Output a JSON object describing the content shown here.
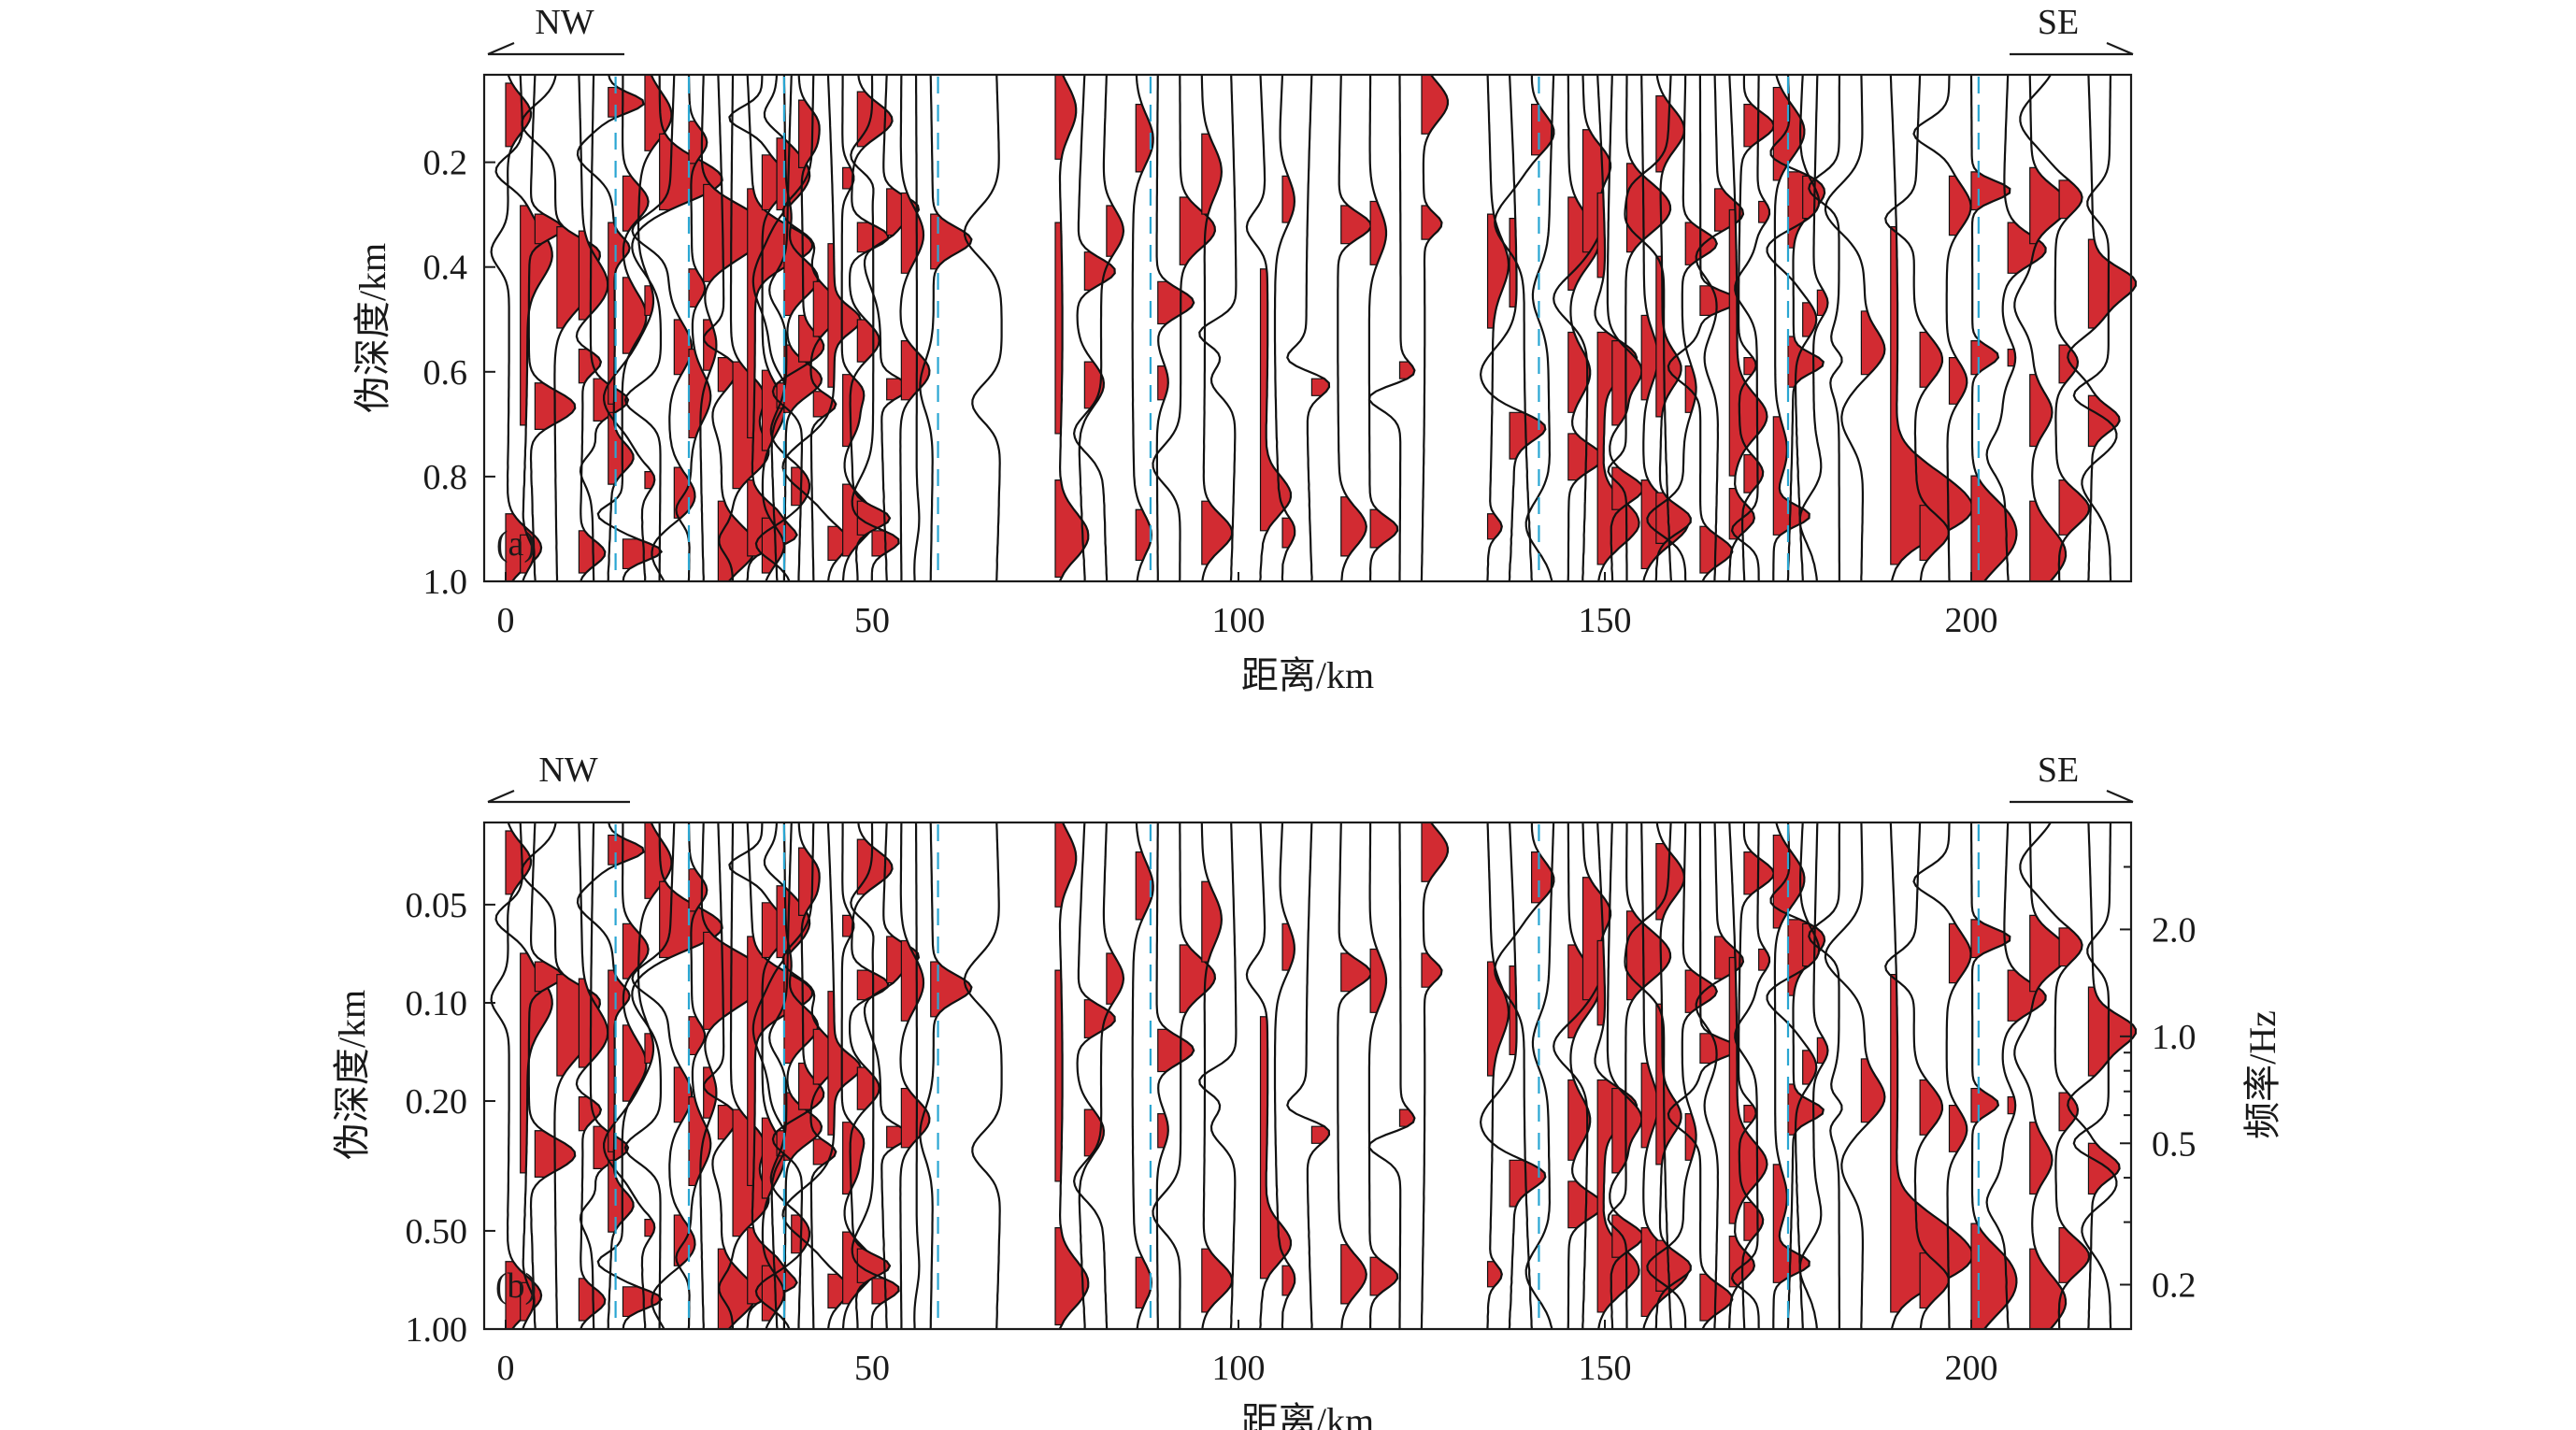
{
  "chart_data": [
    {
      "type": "other",
      "panel_label": "(a)",
      "xlabel": "距离/km",
      "ylabel": "伪深度/km",
      "x_ticks": [
        0,
        50,
        100,
        150,
        200
      ],
      "y_ticks": [
        0.2,
        0.4,
        0.6,
        0.8,
        1.0
      ],
      "y_scale": "linear",
      "left_direction": "NW",
      "right_direction": "SE",
      "station_distances_km": [
        0,
        2,
        4,
        7,
        10,
        12,
        14,
        16,
        19,
        21,
        23,
        25,
        27,
        29,
        31,
        33,
        35,
        37,
        38,
        39,
        40,
        42,
        44,
        46,
        48,
        50,
        52,
        54,
        56,
        58,
        67,
        75,
        79,
        82,
        86,
        89,
        92,
        95,
        99,
        103,
        106,
        110,
        114,
        118,
        122,
        125,
        134,
        137,
        140,
        143,
        145,
        147,
        149,
        151,
        153,
        155,
        157,
        159,
        161,
        163,
        165,
        167,
        169,
        171,
        173,
        175,
        177,
        179,
        182,
        185,
        189,
        193,
        197,
        200,
        205,
        208,
        212,
        216,
        219
      ],
      "marker_lines_km": [
        15,
        25,
        38,
        59,
        88,
        141,
        175,
        201
      ]
    },
    {
      "type": "other",
      "panel_label": "(b)",
      "xlabel": "距离/km",
      "ylabel": "伪深度/km",
      "y2label": "频率/Hz",
      "x_ticks": [
        0,
        50,
        100,
        150,
        200
      ],
      "y_ticks": [
        0.05,
        0.1,
        0.2,
        0.5,
        1.0
      ],
      "y_tick_labels": [
        "0.05",
        "0.10",
        "0.20",
        "0.50",
        "1.00"
      ],
      "y_scale": "log",
      "y2_ticks": [
        2.0,
        1.0,
        0.5,
        0.2
      ],
      "y2_tick_labels": [
        "2.0",
        "1.0",
        "0.5",
        "0.2"
      ],
      "left_direction": "NW",
      "right_direction": "SE",
      "station_distances_km": [
        0,
        2,
        4,
        7,
        10,
        12,
        14,
        16,
        19,
        21,
        23,
        25,
        27,
        29,
        31,
        33,
        35,
        37,
        38,
        39,
        40,
        42,
        44,
        46,
        48,
        50,
        52,
        54,
        56,
        58,
        67,
        75,
        79,
        82,
        86,
        89,
        92,
        95,
        99,
        103,
        106,
        110,
        114,
        118,
        122,
        125,
        134,
        137,
        140,
        143,
        145,
        147,
        149,
        151,
        153,
        155,
        157,
        159,
        161,
        163,
        165,
        167,
        169,
        171,
        173,
        175,
        177,
        179,
        182,
        185,
        189,
        193,
        197,
        200,
        205,
        208,
        212,
        216,
        219
      ],
      "marker_lines_km": [
        15,
        25,
        38,
        59,
        88,
        141,
        175,
        201
      ]
    }
  ],
  "colors": {
    "fill": "#d22b32",
    "marker": "#2aa6d2",
    "trace": "#111111"
  }
}
